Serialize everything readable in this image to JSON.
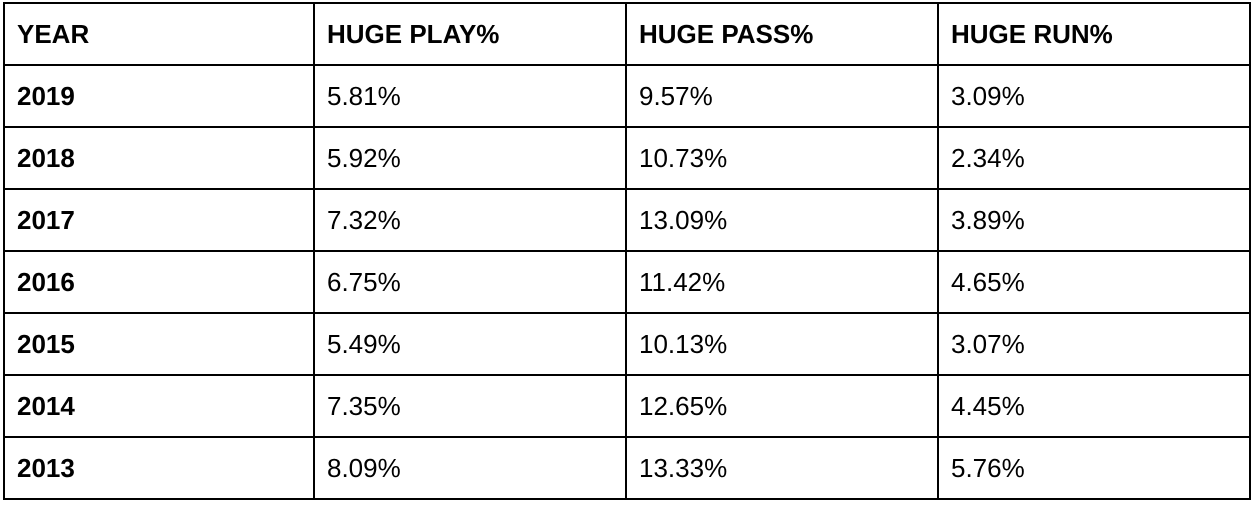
{
  "chart_data": {
    "type": "table",
    "columns": [
      "YEAR",
      "HUGE PLAY%",
      "HUGE PASS%",
      "HUGE RUN%"
    ],
    "rows": [
      [
        "2019",
        "5.81%",
        "9.57%",
        "3.09%"
      ],
      [
        "2018",
        "5.92%",
        "10.73%",
        "2.34%"
      ],
      [
        "2017",
        "7.32%",
        "13.09%",
        "3.89%"
      ],
      [
        "2016",
        "6.75%",
        "11.42%",
        "4.65%"
      ],
      [
        "2015",
        "5.49%",
        "10.13%",
        "3.07%"
      ],
      [
        "2014",
        "7.35%",
        "12.65%",
        "4.45%"
      ],
      [
        "2013",
        "8.09%",
        "13.33%",
        "5.76%"
      ]
    ]
  }
}
